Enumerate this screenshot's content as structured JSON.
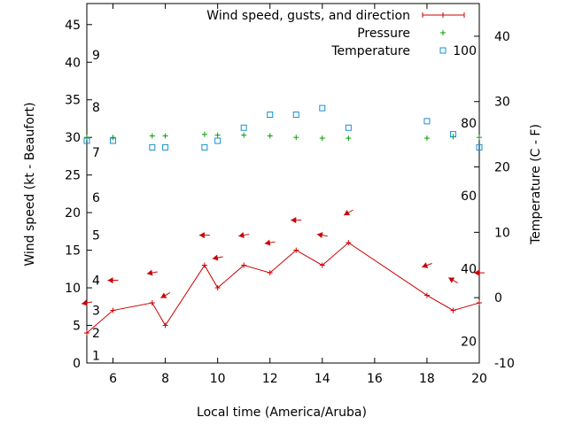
{
  "chart_data": {
    "type": "line",
    "xlabel": "Local time (America/Aruba)",
    "ylabel": "Wind speed (kt - Beaufort)",
    "y2label": "Temperature (C - F)",
    "xlim": [
      5,
      20
    ],
    "ylim": [
      0,
      47.8
    ],
    "y2lim": [
      -10,
      45
    ],
    "x_ticks": [
      6,
      8,
      10,
      12,
      14,
      16,
      18,
      20
    ],
    "x_tick_labels": [
      "6",
      "8",
      "10",
      "12",
      "14",
      "16",
      "18",
      "20"
    ],
    "y_ticks": [
      0,
      5,
      10,
      15,
      20,
      25,
      30,
      35,
      40,
      45
    ],
    "y_tick_labels": [
      "0",
      "5",
      "10",
      "15",
      "20",
      "25",
      "30",
      "35",
      "40",
      "45"
    ],
    "y2_ticks": [
      -10,
      0,
      10,
      20,
      30,
      40
    ],
    "y2_tick_labels": [
      "-10",
      "0",
      "10",
      "20",
      "30",
      "40"
    ],
    "beaufort_labels": [
      {
        "text": "1",
        "y": 1
      },
      {
        "text": "2",
        "y": 4
      },
      {
        "text": "3",
        "y": 7
      },
      {
        "text": "4",
        "y": 11
      },
      {
        "text": "5",
        "y": 17
      },
      {
        "text": "6",
        "y": 22
      },
      {
        "text": "7",
        "y": 28
      },
      {
        "text": "8",
        "y": 34
      },
      {
        "text": "9",
        "y": 41
      }
    ],
    "fahrenheit_labels": [
      {
        "text": "20",
        "c": -6.7
      },
      {
        "text": "40",
        "c": 4.4
      },
      {
        "text": "60",
        "c": 15.6
      },
      {
        "text": "80",
        "c": 26.7
      },
      {
        "text": "100",
        "c": 37.8
      }
    ],
    "legend": [
      {
        "label": "Wind speed, gusts, and direction",
        "color": "#cc0000",
        "marker": "line-plus"
      },
      {
        "label": "Pressure",
        "color": "#00a000",
        "marker": "plus"
      },
      {
        "label": "Temperature",
        "color": "#1a8fd0",
        "marker": "square"
      }
    ],
    "series": [
      {
        "name": "Wind speed, gusts, and direction",
        "color": "#cc0000",
        "x": [
          5,
          6,
          7.5,
          8,
          9.5,
          10,
          11,
          12,
          13,
          14,
          15,
          18,
          19,
          20
        ],
        "y": [
          4,
          7,
          8,
          5,
          13,
          10,
          13,
          12,
          15,
          13,
          16,
          9,
          7,
          8
        ]
      },
      {
        "name": "Pressure",
        "color": "#00a000",
        "x": [
          5,
          6,
          7.5,
          8,
          9.5,
          10,
          11,
          12,
          13,
          14,
          15,
          18,
          19,
          20
        ],
        "y": [
          30,
          30,
          30.2,
          30.2,
          30.4,
          30.3,
          30.3,
          30.2,
          30,
          29.9,
          29.9,
          29.9,
          30.1,
          30
        ]
      },
      {
        "name": "Temperature",
        "color": "#1a8fd0",
        "axis": "y2",
        "x": [
          5,
          6,
          7.5,
          8,
          9.5,
          10,
          11,
          12,
          13,
          14,
          15,
          18,
          19,
          20
        ],
        "y": [
          24,
          24,
          23,
          23,
          23,
          24,
          26,
          28,
          28,
          29,
          26,
          27,
          25,
          23
        ]
      }
    ],
    "wind_arrows": [
      {
        "x": 5,
        "y": 8,
        "dir_deg": 80
      },
      {
        "x": 6,
        "y": 11,
        "dir_deg": 90
      },
      {
        "x": 7.5,
        "y": 12,
        "dir_deg": 80
      },
      {
        "x": 8,
        "y": 9,
        "dir_deg": 60
      },
      {
        "x": 9.5,
        "y": 17,
        "dir_deg": 90
      },
      {
        "x": 10,
        "y": 14,
        "dir_deg": 80
      },
      {
        "x": 11,
        "y": 17,
        "dir_deg": 80
      },
      {
        "x": 12,
        "y": 16,
        "dir_deg": 80
      },
      {
        "x": 13,
        "y": 19,
        "dir_deg": 90
      },
      {
        "x": 14,
        "y": 17,
        "dir_deg": 100
      },
      {
        "x": 15,
        "y": 20,
        "dir_deg": 60
      },
      {
        "x": 18,
        "y": 13,
        "dir_deg": 70
      },
      {
        "x": 19,
        "y": 11,
        "dir_deg": 120
      },
      {
        "x": 20,
        "y": 12,
        "dir_deg": 90
      }
    ]
  }
}
